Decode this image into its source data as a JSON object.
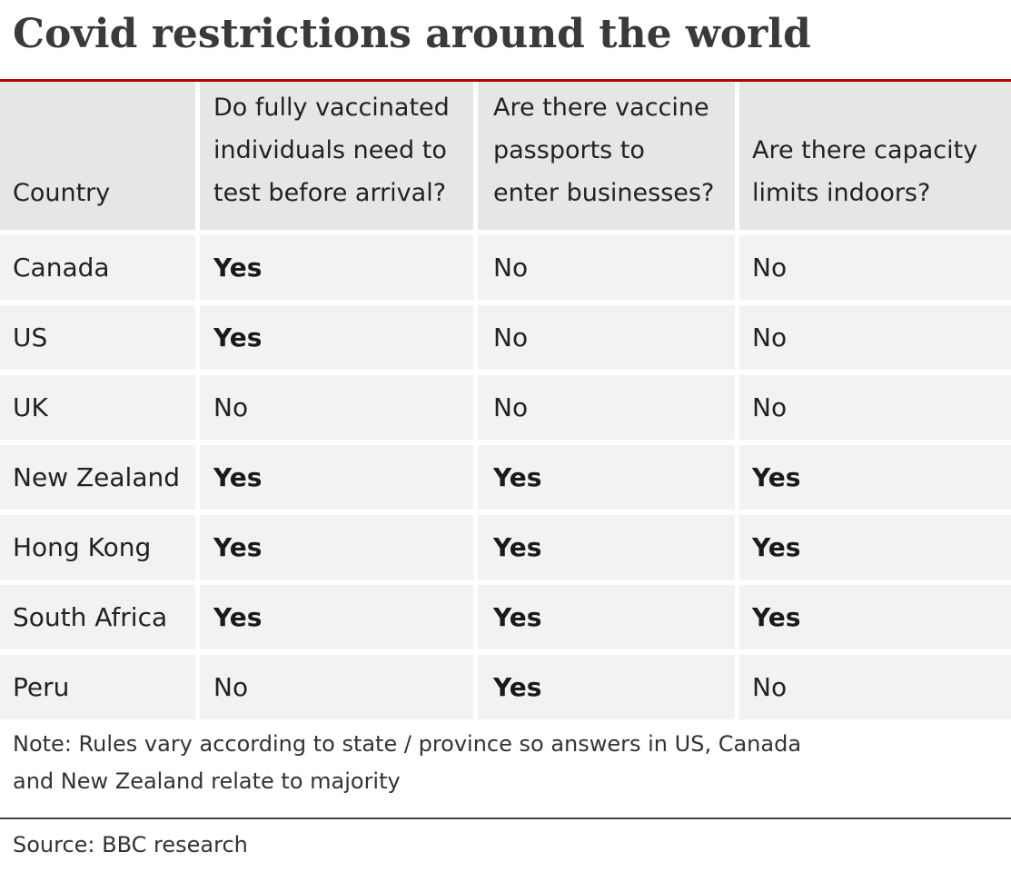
{
  "title": "Covid restrictions around the world",
  "colors": {
    "accent_rule": "#b80000",
    "header_bg": "#e6e6e6",
    "row_bg": "#f2f2f2"
  },
  "table": {
    "headers": [
      "Country",
      "Do fully vaccinated individuals need to test before arrival?",
      "Are there vaccine passports to enter businesses?",
      "Are there capacity limits indoors?"
    ],
    "header_lines": [
      [
        "Country"
      ],
      [
        "Do fully vaccinated",
        "individuals need to",
        "test before arrival?"
      ],
      [
        "Are there vaccine",
        "passports to",
        "enter businesses?"
      ],
      [
        "Are there capacity",
        "limits indoors?"
      ]
    ],
    "rows": [
      [
        "Canada",
        "Yes",
        "No",
        "No"
      ],
      [
        "US",
        "Yes",
        "No",
        "No"
      ],
      [
        "UK",
        "No",
        "No",
        "No"
      ],
      [
        "New Zealand",
        "Yes",
        "Yes",
        "Yes"
      ],
      [
        "Hong Kong",
        "Yes",
        "Yes",
        "Yes"
      ],
      [
        "South Africa",
        "Yes",
        "Yes",
        "Yes"
      ],
      [
        "Peru",
        "No",
        "Yes",
        "No"
      ]
    ]
  },
  "note": "Note: Rules vary according to state / province so answers in US, Canada and New Zealand relate to majority",
  "source": "Source: BBC research"
}
